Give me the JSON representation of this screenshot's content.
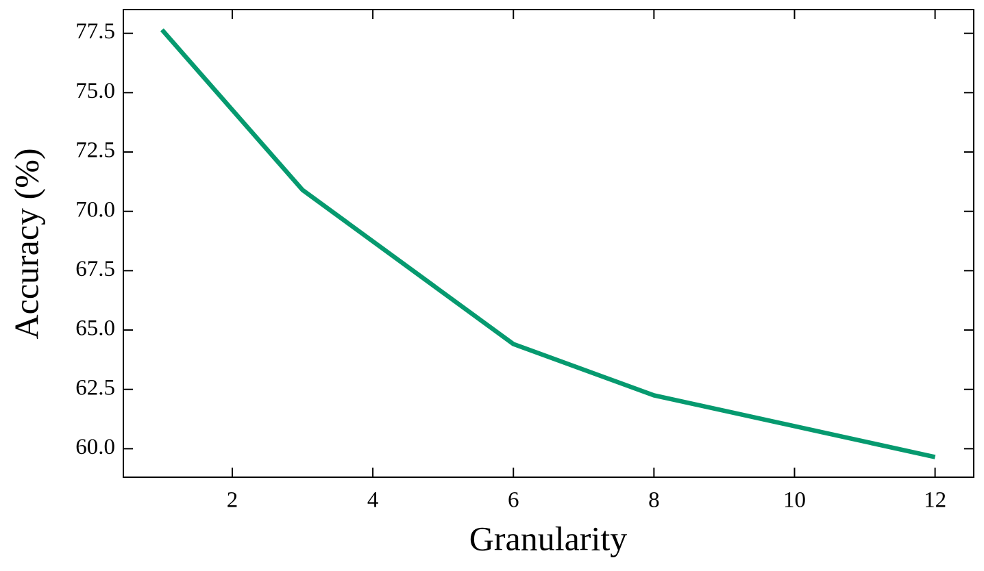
{
  "chart_data": {
    "type": "line",
    "x_label": "Granularity",
    "y_label": "Accuracy (%)",
    "x": [
      1,
      3,
      6,
      8,
      12
    ],
    "series": [
      {
        "color": "#069a6f",
        "values": [
          77.65,
          70.9,
          64.41,
          62.25,
          59.65
        ]
      }
    ],
    "xlim": [
      0.45,
      12.55
    ],
    "ylim": [
      58.8,
      78.5
    ],
    "xticks": [
      2,
      4,
      6,
      8,
      10,
      12
    ],
    "yticks": [
      {
        "value": 60,
        "label": "60.0"
      },
      62.5,
      {
        "value": 65,
        "label": "65.0"
      },
      67.5,
      {
        "value": 70,
        "label": "70.0"
      },
      72.5,
      {
        "value": 75,
        "label": "75.0"
      },
      77.5
    ]
  }
}
